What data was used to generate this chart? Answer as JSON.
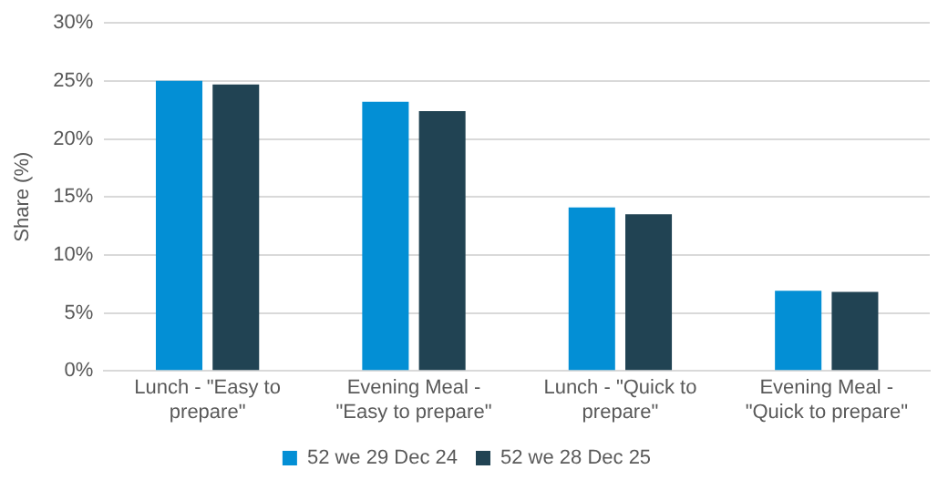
{
  "chart_data": {
    "type": "bar",
    "ylabel": "Share (%)",
    "categories": [
      "Lunch - \"Easy to prepare\"",
      "Evening Meal - \"Easy to prepare\"",
      "Lunch - \"Quick to prepare\"",
      "Evening Meal - \"Quick to prepare\""
    ],
    "series": [
      {
        "name": "52 we 29 Dec 24",
        "color": "#038fd5",
        "values": [
          25.0,
          23.2,
          14.1,
          6.9
        ]
      },
      {
        "name": "52 we 28 Dec 25",
        "color": "#214353",
        "values": [
          24.7,
          22.4,
          13.5,
          6.8
        ]
      }
    ],
    "ylim": [
      0,
      30
    ],
    "yticks": [
      {
        "value": 0,
        "label": "0%"
      },
      {
        "value": 5,
        "label": "5%"
      },
      {
        "value": 10,
        "label": "10%"
      },
      {
        "value": 15,
        "label": "15%"
      },
      {
        "value": 20,
        "label": "20%"
      },
      {
        "value": 25,
        "label": "25%"
      },
      {
        "value": 30,
        "label": "30%"
      }
    ],
    "grid": "y",
    "legend": "bottom"
  }
}
